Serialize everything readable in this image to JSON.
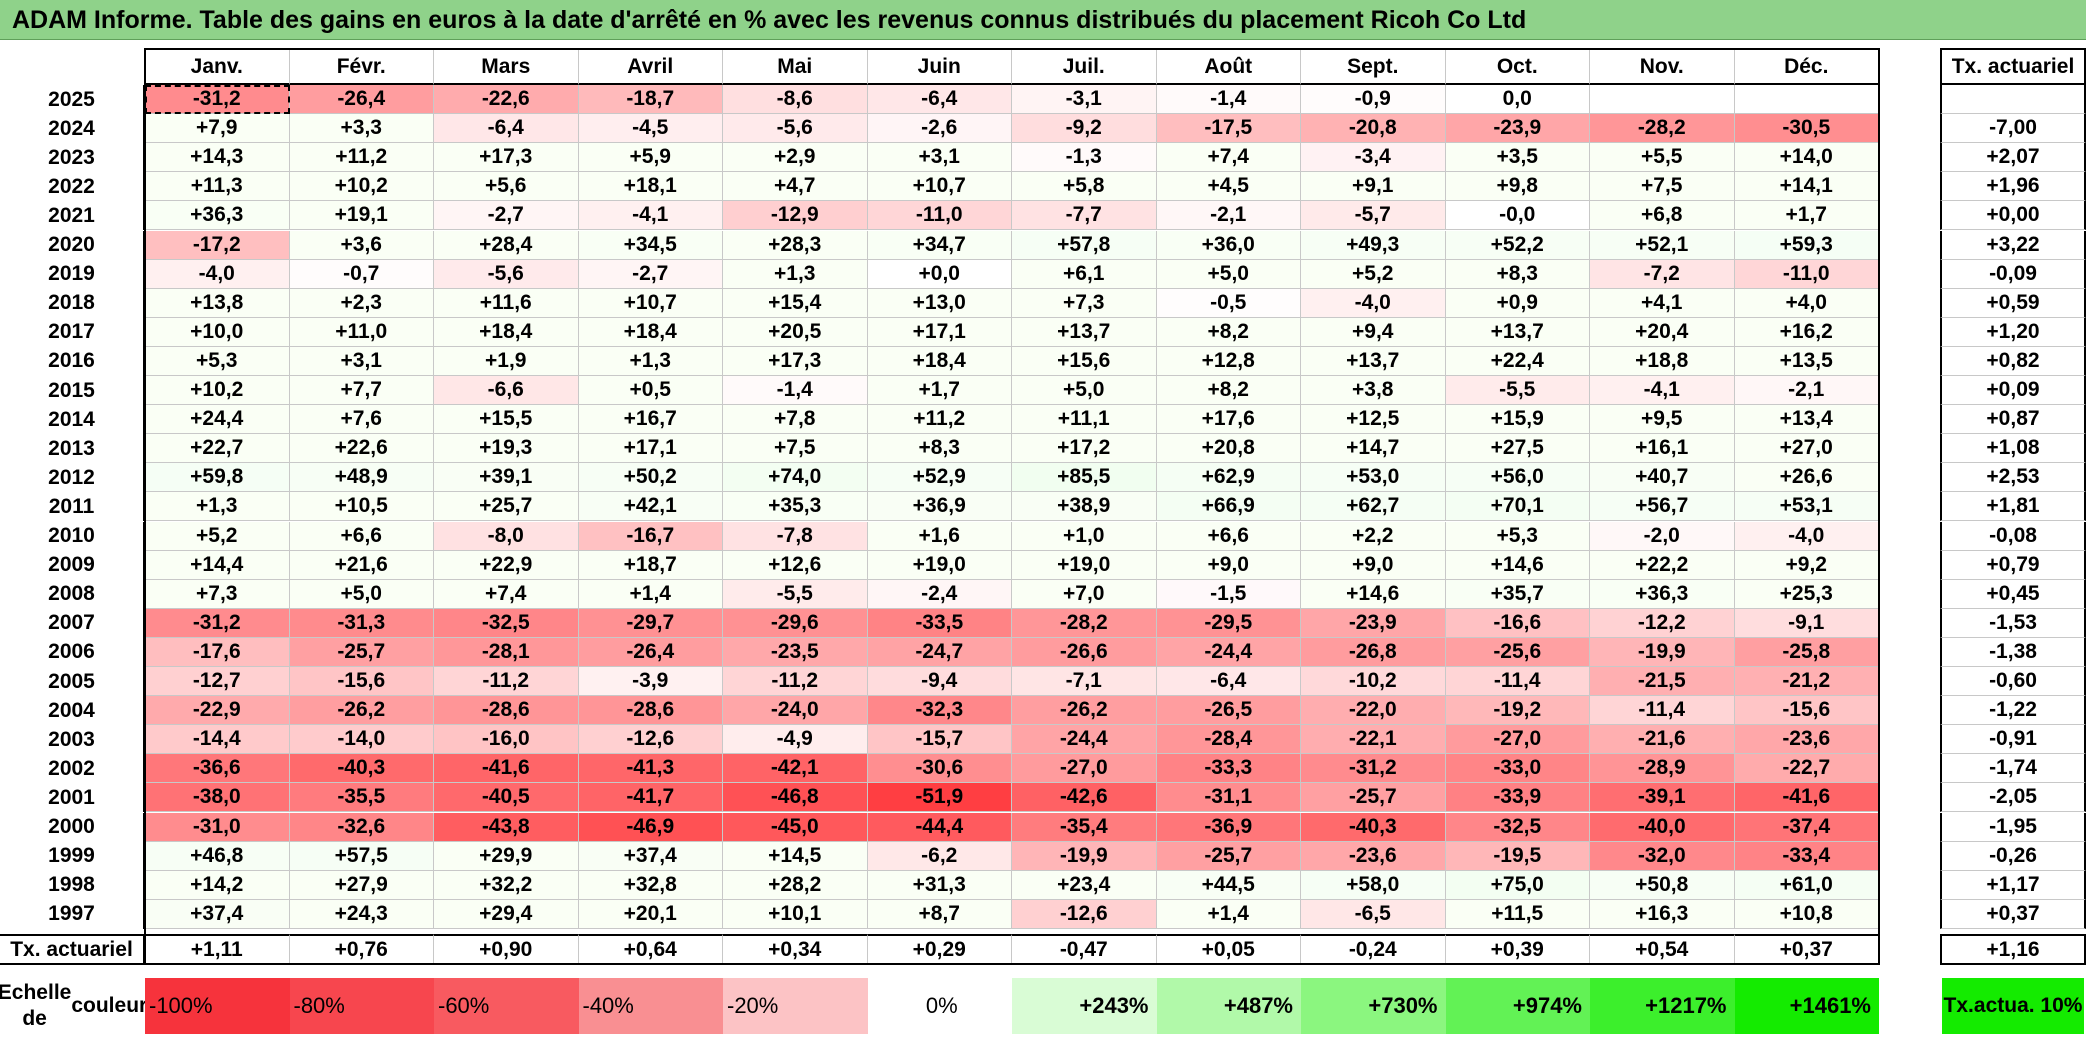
{
  "title": "ADAM Informe. Table des gains en euros à la date d'arrêté en % avec les revenus connus distribués du placement Ricoh Co Ltd",
  "months": [
    "Janv.",
    "Févr.",
    "Mars",
    "Avril",
    "Mai",
    "Juin",
    "Juil.",
    "Août",
    "Sept.",
    "Oct.",
    "Nov.",
    "Déc."
  ],
  "rate_header": "Tx. actuariel",
  "rows": [
    {
      "year": "2025",
      "values": [
        "-31,2",
        "-26,4",
        "-22,6",
        "-18,7",
        "-8,6",
        "-6,4",
        "-3,1",
        "-1,4",
        "-0,9",
        "0,0",
        "",
        ""
      ],
      "rate": ""
    },
    {
      "year": "2024",
      "values": [
        "+7,9",
        "+3,3",
        "-6,4",
        "-4,5",
        "-5,6",
        "-2,6",
        "-9,2",
        "-17,5",
        "-20,8",
        "-23,9",
        "-28,2",
        "-30,5"
      ],
      "rate": "-7,00"
    },
    {
      "year": "2023",
      "values": [
        "+14,3",
        "+11,2",
        "+17,3",
        "+5,9",
        "+2,9",
        "+3,1",
        "-1,3",
        "+7,4",
        "-3,4",
        "+3,5",
        "+5,5",
        "+14,0"
      ],
      "rate": "+2,07"
    },
    {
      "year": "2022",
      "values": [
        "+11,3",
        "+10,2",
        "+5,6",
        "+18,1",
        "+4,7",
        "+10,7",
        "+5,8",
        "+4,5",
        "+9,1",
        "+9,8",
        "+7,5",
        "+14,1"
      ],
      "rate": "+1,96"
    },
    {
      "year": "2021",
      "values": [
        "+36,3",
        "+19,1",
        "-2,7",
        "-4,1",
        "-12,9",
        "-11,0",
        "-7,7",
        "-2,1",
        "-5,7",
        "-0,0",
        "+6,8",
        "+1,7"
      ],
      "rate": "+0,00"
    },
    {
      "year": "2020",
      "values": [
        "-17,2",
        "+3,6",
        "+28,4",
        "+34,5",
        "+28,3",
        "+34,7",
        "+57,8",
        "+36,0",
        "+49,3",
        "+52,2",
        "+52,1",
        "+59,3"
      ],
      "rate": "+3,22"
    },
    {
      "year": "2019",
      "values": [
        "-4,0",
        "-0,7",
        "-5,6",
        "-2,7",
        "+1,3",
        "+0,0",
        "+6,1",
        "+5,0",
        "+5,2",
        "+8,3",
        "-7,2",
        "-11,0"
      ],
      "rate": "-0,09"
    },
    {
      "year": "2018",
      "values": [
        "+13,8",
        "+2,3",
        "+11,6",
        "+10,7",
        "+15,4",
        "+13,0",
        "+7,3",
        "-0,5",
        "-4,0",
        "+0,9",
        "+4,1",
        "+4,0"
      ],
      "rate": "+0,59"
    },
    {
      "year": "2017",
      "values": [
        "+10,0",
        "+11,0",
        "+18,4",
        "+18,4",
        "+20,5",
        "+17,1",
        "+13,7",
        "+8,2",
        "+9,4",
        "+13,7",
        "+20,4",
        "+16,2"
      ],
      "rate": "+1,20"
    },
    {
      "year": "2016",
      "values": [
        "+5,3",
        "+3,1",
        "+1,9",
        "+1,3",
        "+17,3",
        "+18,4",
        "+15,6",
        "+12,8",
        "+13,7",
        "+22,4",
        "+18,8",
        "+13,5"
      ],
      "rate": "+0,82"
    },
    {
      "year": "2015",
      "values": [
        "+10,2",
        "+7,7",
        "-6,6",
        "+0,5",
        "-1,4",
        "+1,7",
        "+5,0",
        "+8,2",
        "+3,8",
        "-5,5",
        "-4,1",
        "-2,1"
      ],
      "rate": "+0,09"
    },
    {
      "year": "2014",
      "values": [
        "+24,4",
        "+7,6",
        "+15,5",
        "+16,7",
        "+7,8",
        "+11,2",
        "+11,1",
        "+17,6",
        "+12,5",
        "+15,9",
        "+9,5",
        "+13,4"
      ],
      "rate": "+0,87"
    },
    {
      "year": "2013",
      "values": [
        "+22,7",
        "+22,6",
        "+19,3",
        "+17,1",
        "+7,5",
        "+8,3",
        "+17,2",
        "+20,8",
        "+14,7",
        "+27,5",
        "+16,1",
        "+27,0"
      ],
      "rate": "+1,08"
    },
    {
      "year": "2012",
      "values": [
        "+59,8",
        "+48,9",
        "+39,1",
        "+50,2",
        "+74,0",
        "+52,9",
        "+85,5",
        "+62,9",
        "+53,0",
        "+56,0",
        "+40,7",
        "+26,6"
      ],
      "rate": "+2,53"
    },
    {
      "year": "2011",
      "values": [
        "+1,3",
        "+10,5",
        "+25,7",
        "+42,1",
        "+35,3",
        "+36,9",
        "+38,9",
        "+66,9",
        "+62,7",
        "+70,1",
        "+56,7",
        "+53,1"
      ],
      "rate": "+1,81"
    },
    {
      "year": "2010",
      "values": [
        "+5,2",
        "+6,6",
        "-8,0",
        "-16,7",
        "-7,8",
        "+1,6",
        "+1,0",
        "+6,6",
        "+2,2",
        "+5,3",
        "-2,0",
        "-4,0"
      ],
      "rate": "-0,08"
    },
    {
      "year": "2009",
      "values": [
        "+14,4",
        "+21,6",
        "+22,9",
        "+18,7",
        "+12,6",
        "+19,0",
        "+19,0",
        "+9,0",
        "+9,0",
        "+14,6",
        "+22,2",
        "+9,2"
      ],
      "rate": "+0,79"
    },
    {
      "year": "2008",
      "values": [
        "+7,3",
        "+5,0",
        "+7,4",
        "+1,4",
        "-5,5",
        "-2,4",
        "+7,0",
        "-1,5",
        "+14,6",
        "+35,7",
        "+36,3",
        "+25,3"
      ],
      "rate": "+0,45"
    },
    {
      "year": "2007",
      "values": [
        "-31,2",
        "-31,3",
        "-32,5",
        "-29,7",
        "-29,6",
        "-33,5",
        "-28,2",
        "-29,5",
        "-23,9",
        "-16,6",
        "-12,2",
        "-9,1"
      ],
      "rate": "-1,53"
    },
    {
      "year": "2006",
      "values": [
        "-17,6",
        "-25,7",
        "-28,1",
        "-26,4",
        "-23,5",
        "-24,7",
        "-26,6",
        "-24,4",
        "-26,8",
        "-25,6",
        "-19,9",
        "-25,8"
      ],
      "rate": "-1,38"
    },
    {
      "year": "2005",
      "values": [
        "-12,7",
        "-15,6",
        "-11,2",
        "-3,9",
        "-11,2",
        "-9,4",
        "-7,1",
        "-6,4",
        "-10,2",
        "-11,4",
        "-21,5",
        "-21,2"
      ],
      "rate": "-0,60"
    },
    {
      "year": "2004",
      "values": [
        "-22,9",
        "-26,2",
        "-28,6",
        "-28,6",
        "-24,0",
        "-32,3",
        "-26,2",
        "-26,5",
        "-22,0",
        "-19,2",
        "-11,4",
        "-15,6"
      ],
      "rate": "-1,22"
    },
    {
      "year": "2003",
      "values": [
        "-14,4",
        "-14,0",
        "-16,0",
        "-12,6",
        "-4,9",
        "-15,7",
        "-24,4",
        "-28,4",
        "-22,1",
        "-27,0",
        "-21,6",
        "-23,6"
      ],
      "rate": "-0,91"
    },
    {
      "year": "2002",
      "values": [
        "-36,6",
        "-40,3",
        "-41,6",
        "-41,3",
        "-42,1",
        "-30,6",
        "-27,0",
        "-33,3",
        "-31,2",
        "-33,0",
        "-28,9",
        "-22,7"
      ],
      "rate": "-1,74"
    },
    {
      "year": "2001",
      "values": [
        "-38,0",
        "-35,5",
        "-40,5",
        "-41,7",
        "-46,8",
        "-51,9",
        "-42,6",
        "-31,1",
        "-25,7",
        "-33,9",
        "-39,1",
        "-41,6"
      ],
      "rate": "-2,05"
    },
    {
      "year": "2000",
      "values": [
        "-31,0",
        "-32,6",
        "-43,8",
        "-46,9",
        "-45,0",
        "-44,4",
        "-35,4",
        "-36,9",
        "-40,3",
        "-32,5",
        "-40,0",
        "-37,4"
      ],
      "rate": "-1,95"
    },
    {
      "year": "1999",
      "values": [
        "+46,8",
        "+57,5",
        "+29,9",
        "+37,4",
        "+14,5",
        "-6,2",
        "-19,9",
        "-25,7",
        "-23,6",
        "-19,5",
        "-32,0",
        "-33,4"
      ],
      "rate": "-0,26"
    },
    {
      "year": "1998",
      "values": [
        "+14,2",
        "+27,9",
        "+32,2",
        "+32,8",
        "+28,2",
        "+31,3",
        "+23,4",
        "+44,5",
        "+58,0",
        "+75,0",
        "+50,8",
        "+61,0"
      ],
      "rate": "+1,17"
    },
    {
      "year": "1997",
      "values": [
        "+37,4",
        "+24,3",
        "+29,4",
        "+20,1",
        "+10,1",
        "+8,7",
        "-12,6",
        "+1,4",
        "-6,5",
        "+11,5",
        "+16,3",
        "+10,8"
      ],
      "rate": "+0,37"
    }
  ],
  "footer": {
    "label": "Tx. actuariel",
    "values": [
      "+1,11",
      "+0,76",
      "+0,90",
      "+0,64",
      "+0,34",
      "+0,29",
      "-0,47",
      "+0,05",
      "-0,24",
      "+0,39",
      "+0,54",
      "+0,37"
    ],
    "total": "+1,16"
  },
  "scale": {
    "label_line1": "Echelle de",
    "label_line2": "couleur",
    "steps": [
      "-100%",
      "-80%",
      "-60%",
      "-40%",
      "-20%",
      "0%",
      "+243%",
      "+487%",
      "+730%",
      "+974%",
      "+1217%",
      "+1461%"
    ],
    "colors": [
      "#f6333c",
      "#f7464e",
      "#f85a60",
      "#f98f92",
      "#fcc3c5",
      "#ffffff",
      "#d9fcd5",
      "#b1f9a9",
      "#8bf67f",
      "#62f255",
      "#3cef2c",
      "#14eb00"
    ],
    "rate_line1": "Tx.",
    "rate_line2": "actua. 10%",
    "rate_color": "#14eb00"
  }
}
